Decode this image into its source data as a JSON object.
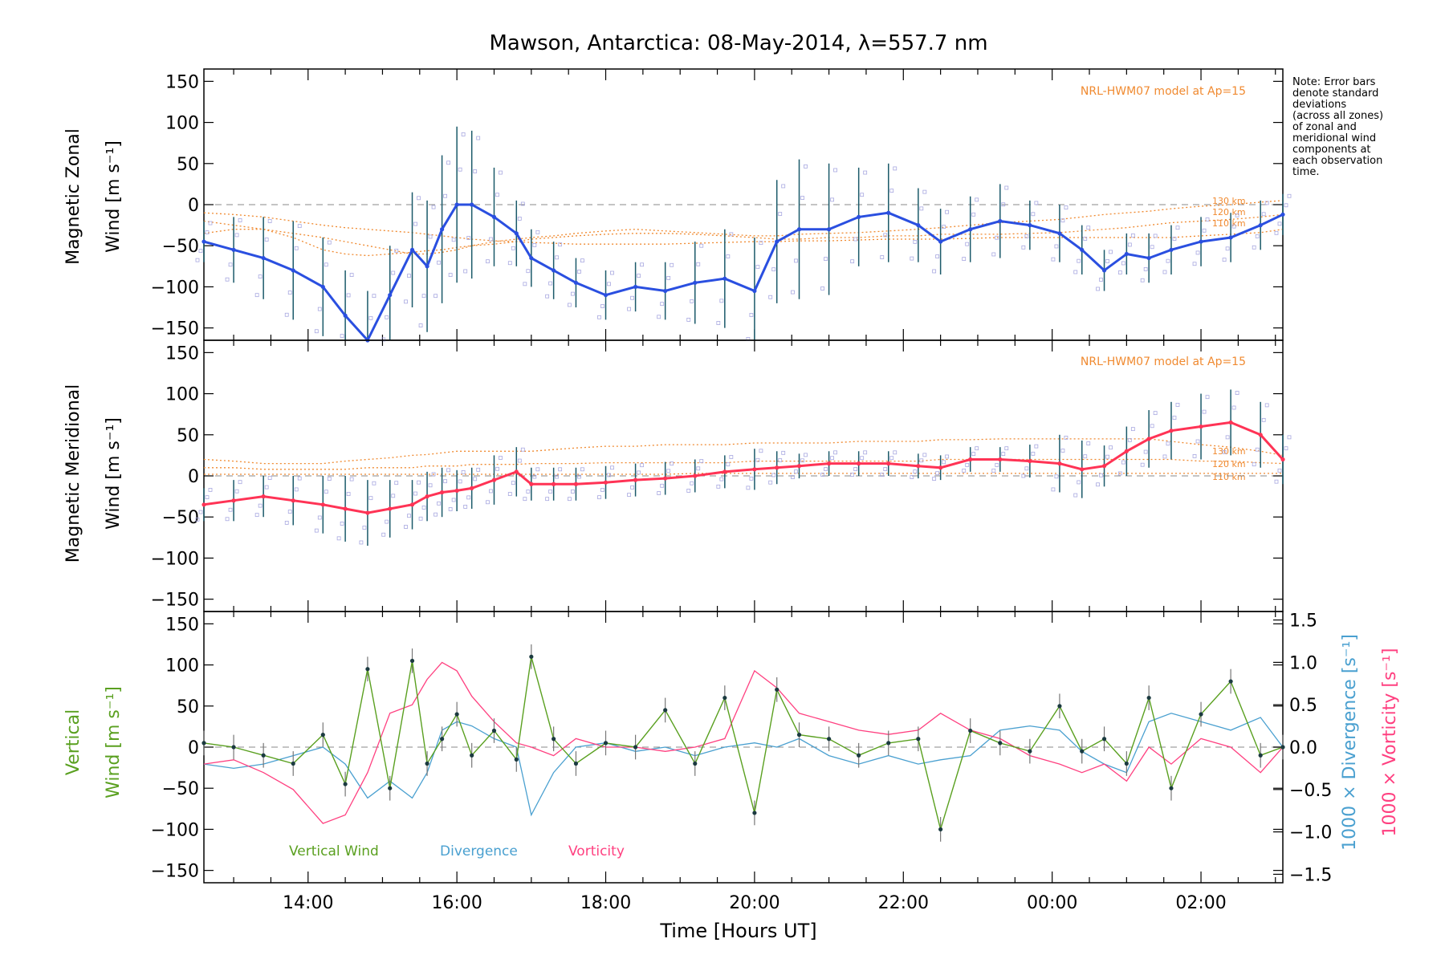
{
  "figure": {
    "title": "Mawson, Antarctica: 08-May-2014, λ=557.7 nm",
    "note": [
      "Note: Error bars",
      "denote standard",
      "deviations",
      "(across all zones)",
      "of zonal and",
      "meridional wind",
      "components at",
      "each observation",
      "time."
    ],
    "xlabel": "Time [Hours UT]",
    "colors": {
      "zonal": "#2a4fe0",
      "zonal_light": "#55a6e0",
      "meridional": "#ff3355",
      "vertical": "#5aa020",
      "divergence": "#4aa0d0",
      "vorticity": "#ff4080",
      "model": "#f08a30",
      "error_bar": "#1b5a6a",
      "scatter": "#a8a8e0"
    }
  },
  "chart_data": [
    {
      "type": "line",
      "panel": "zonal",
      "ylabel": [
        "Magnetic Zonal",
        "Wind [m s⁻¹]"
      ],
      "model_label": "NRL-HWM07 model at Ap=15",
      "model_levels": [
        "130 km",
        "120 km",
        "110 km"
      ],
      "xlim": [
        12.6,
        27.1
      ],
      "ylim": [
        -165,
        165
      ],
      "yticks": [
        -150,
        -100,
        -50,
        0,
        50,
        100,
        150
      ],
      "x_ticks": [
        "14:00",
        "16:00",
        "18:00",
        "20:00",
        "22:00",
        "00:00",
        "02:00"
      ],
      "x": [
        12.6,
        13.0,
        13.4,
        13.8,
        14.2,
        14.5,
        14.8,
        15.1,
        15.4,
        15.6,
        15.8,
        16.0,
        16.2,
        16.5,
        16.8,
        17.0,
        17.3,
        17.6,
        18.0,
        18.4,
        18.8,
        19.2,
        19.6,
        20.0,
        20.3,
        20.6,
        21.0,
        21.4,
        21.8,
        22.2,
        22.5,
        22.9,
        23.3,
        23.7,
        24.1,
        24.4,
        24.7,
        25.0,
        25.3,
        25.6,
        26.0,
        26.4,
        26.8,
        27.1
      ],
      "series": [
        {
          "values": [
            -45,
            -55,
            -65,
            -80,
            -100,
            -135,
            -165,
            -110,
            -55,
            -75,
            -30,
            0,
            0,
            -15,
            -35,
            -65,
            -80,
            -95,
            -110,
            -100,
            -105,
            -95,
            -90,
            -105,
            -45,
            -30,
            -30,
            -15,
            -10,
            -25,
            -45,
            -30,
            -20,
            -25,
            -35,
            -55,
            -80,
            -60,
            -65,
            -55,
            -45,
            -40,
            -25,
            -12
          ],
          "error": [
            25,
            40,
            50,
            60,
            60,
            55,
            60,
            60,
            70,
            80,
            90,
            95,
            90,
            60,
            40,
            35,
            35,
            30,
            30,
            30,
            35,
            50,
            60,
            65,
            75,
            85,
            80,
            60,
            60,
            45,
            40,
            40,
            45,
            30,
            35,
            30,
            25,
            25,
            30,
            30,
            30,
            30,
            30,
            25
          ]
        }
      ],
      "model": [
        {
          "level": "130 km",
          "values": [
            -35,
            -30,
            -30,
            -35,
            -40,
            -45,
            -50,
            -55,
            -60,
            -60,
            -58,
            -55,
            -50,
            -45,
            -42,
            -40,
            -38,
            -35,
            -32,
            -30,
            -32,
            -34,
            -36,
            -38,
            -38,
            -36,
            -35,
            -34,
            -32,
            -30,
            -28,
            -25,
            -22,
            -20,
            -18,
            -15,
            -12,
            -10,
            -8,
            -5,
            -2,
            0,
            3,
            5
          ]
        },
        {
          "level": "120 km",
          "values": [
            -20,
            -25,
            -30,
            -40,
            -55,
            -60,
            -62,
            -60,
            -58,
            -56,
            -55,
            -52,
            -50,
            -48,
            -45,
            -42,
            -40,
            -38,
            -36,
            -35,
            -35,
            -36,
            -38,
            -40,
            -42,
            -42,
            -40,
            -40,
            -38,
            -38,
            -36,
            -36,
            -36,
            -35,
            -34,
            -32,
            -30,
            -28,
            -25,
            -22,
            -20,
            -18,
            -15,
            -12
          ]
        },
        {
          "level": "110 km",
          "values": [
            -10,
            -12,
            -15,
            -20,
            -25,
            -28,
            -30,
            -32,
            -34,
            -36,
            -38,
            -40,
            -42,
            -44,
            -45,
            -46,
            -47,
            -48,
            -48,
            -48,
            -48,
            -47,
            -46,
            -45,
            -45,
            -44,
            -44,
            -43,
            -42,
            -42,
            -42,
            -41,
            -40,
            -40,
            -40,
            -40,
            -40,
            -40,
            -40,
            -40,
            -38,
            -36,
            -34,
            -30
          ]
        }
      ]
    },
    {
      "type": "line",
      "panel": "meridional",
      "ylabel": [
        "Magnetic Meridional",
        "Wind [m s⁻¹]"
      ],
      "model_label": "NRL-HWM07 model at Ap=15",
      "model_levels": [
        "130 km",
        "120 km",
        "110 km"
      ],
      "xlim": [
        12.6,
        27.1
      ],
      "ylim": [
        -165,
        165
      ],
      "yticks": [
        -150,
        -100,
        -50,
        0,
        50,
        100,
        150
      ],
      "x": [
        12.6,
        13.0,
        13.4,
        13.8,
        14.2,
        14.5,
        14.8,
        15.1,
        15.4,
        15.6,
        15.8,
        16.0,
        16.2,
        16.5,
        16.8,
        17.0,
        17.3,
        17.6,
        18.0,
        18.4,
        18.8,
        19.2,
        19.6,
        20.0,
        20.3,
        20.6,
        21.0,
        21.4,
        21.8,
        22.2,
        22.5,
        22.9,
        23.3,
        23.7,
        24.1,
        24.4,
        24.7,
        25.0,
        25.3,
        25.6,
        26.0,
        26.4,
        26.8,
        27.1
      ],
      "series": [
        {
          "values": [
            -35,
            -30,
            -25,
            -30,
            -35,
            -40,
            -45,
            -40,
            -35,
            -25,
            -20,
            -18,
            -15,
            -5,
            5,
            -10,
            -10,
            -10,
            -8,
            -5,
            -3,
            0,
            5,
            8,
            10,
            12,
            15,
            15,
            15,
            12,
            10,
            20,
            20,
            18,
            15,
            8,
            12,
            30,
            45,
            55,
            60,
            65,
            50,
            20
          ],
          "error": [
            20,
            25,
            25,
            30,
            35,
            40,
            40,
            35,
            30,
            30,
            30,
            25,
            25,
            30,
            30,
            20,
            20,
            20,
            20,
            20,
            20,
            20,
            20,
            25,
            20,
            15,
            15,
            15,
            15,
            15,
            15,
            15,
            15,
            20,
            35,
            35,
            25,
            30,
            35,
            35,
            40,
            40,
            40,
            30
          ]
        }
      ],
      "model": [
        {
          "level": "130 km",
          "values": [
            20,
            18,
            15,
            15,
            15,
            18,
            20,
            22,
            25,
            26,
            28,
            30,
            30,
            30,
            30,
            30,
            32,
            34,
            36,
            36,
            38,
            38,
            38,
            40,
            40,
            40,
            40,
            42,
            42,
            42,
            44,
            44,
            45,
            45,
            45,
            45,
            45,
            45,
            45,
            42,
            38,
            35,
            30,
            25
          ]
        },
        {
          "level": "120 km",
          "values": [
            10,
            10,
            8,
            8,
            8,
            8,
            10,
            10,
            10,
            12,
            12,
            12,
            14,
            14,
            14,
            15,
            15,
            15,
            16,
            16,
            16,
            16,
            16,
            18,
            18,
            18,
            18,
            18,
            18,
            18,
            20,
            20,
            20,
            20,
            20,
            20,
            20,
            20,
            20,
            20,
            18,
            18,
            16,
            15
          ]
        },
        {
          "level": "110 km",
          "values": [
            2,
            2,
            2,
            2,
            2,
            2,
            2,
            2,
            2,
            2,
            2,
            2,
            2,
            2,
            2,
            2,
            2,
            2,
            2,
            2,
            2,
            3,
            3,
            3,
            3,
            3,
            3,
            3,
            3,
            3,
            3,
            3,
            3,
            3,
            3,
            3,
            3,
            3,
            3,
            3,
            3,
            3,
            3,
            3
          ]
        }
      ]
    },
    {
      "type": "line",
      "panel": "vertical",
      "ylabel": [
        "Vertical",
        "Wind [m s⁻¹]"
      ],
      "ylabel_right": [
        "1000 × Divergence [s⁻¹]",
        "1000 × Vorticity [s⁻¹]"
      ],
      "xlim": [
        12.6,
        27.1
      ],
      "ylim": [
        -165,
        165
      ],
      "yticks": [
        -150,
        -100,
        -50,
        0,
        50,
        100,
        150
      ],
      "ylim_right": [
        -1.6,
        1.6
      ],
      "yticks_right": [
        "-1.5",
        "-1.0",
        "-0.5",
        "0.0",
        "0.5",
        "1.0",
        "1.5"
      ],
      "legend": [
        "Vertical Wind",
        "Divergence",
        "Vorticity"
      ],
      "x": [
        12.6,
        13.0,
        13.4,
        13.8,
        14.2,
        14.5,
        14.8,
        15.1,
        15.4,
        15.6,
        15.8,
        16.0,
        16.2,
        16.5,
        16.8,
        17.0,
        17.3,
        17.6,
        18.0,
        18.4,
        18.8,
        19.2,
        19.6,
        20.0,
        20.3,
        20.6,
        21.0,
        21.4,
        21.8,
        22.2,
        22.5,
        22.9,
        23.3,
        23.7,
        24.1,
        24.4,
        24.7,
        25.0,
        25.3,
        25.6,
        26.0,
        26.4,
        26.8,
        27.1
      ],
      "series": [
        {
          "name": "Vertical Wind",
          "values": [
            5,
            0,
            -10,
            -20,
            15,
            -45,
            95,
            -50,
            105,
            -20,
            10,
            40,
            -10,
            20,
            -15,
            110,
            10,
            -20,
            5,
            0,
            45,
            -20,
            60,
            -80,
            70,
            15,
            10,
            -10,
            5,
            10,
            -100,
            20,
            5,
            -5,
            50,
            -5,
            10,
            -20,
            60,
            -50,
            40,
            80,
            -10,
            0
          ],
          "error": [
            15,
            15,
            15,
            15,
            15,
            15,
            15,
            15,
            15,
            15,
            15,
            15,
            15,
            15,
            15,
            15,
            15,
            15,
            15,
            15,
            15,
            15,
            15,
            15,
            15,
            15,
            15,
            15,
            15,
            15,
            15,
            15,
            15,
            15,
            15,
            15,
            15,
            15,
            15,
            15,
            15,
            15,
            15,
            15
          ]
        },
        {
          "name": "Divergence",
          "values": [
            -0.2,
            -0.25,
            -0.2,
            -0.1,
            0.0,
            -0.2,
            -0.6,
            -0.4,
            -0.6,
            -0.3,
            0.2,
            0.3,
            0.25,
            0.1,
            0.0,
            -0.8,
            -0.3,
            0.0,
            0.05,
            -0.05,
            0.0,
            -0.1,
            0.0,
            0.05,
            0.0,
            0.1,
            -0.1,
            -0.2,
            -0.1,
            -0.2,
            -0.15,
            -0.1,
            0.2,
            0.25,
            0.2,
            -0.05,
            -0.2,
            -0.3,
            0.3,
            0.4,
            0.3,
            0.2,
            0.35,
            0.0
          ]
        },
        {
          "name": "Vorticity",
          "values": [
            -0.2,
            -0.15,
            -0.3,
            -0.5,
            -0.9,
            -0.8,
            -0.3,
            0.4,
            0.5,
            0.8,
            1.0,
            0.9,
            0.6,
            0.3,
            0.05,
            0.0,
            -0.1,
            0.1,
            0.0,
            0.0,
            -0.05,
            0.0,
            0.1,
            0.9,
            0.7,
            0.4,
            0.3,
            0.2,
            0.15,
            0.2,
            0.4,
            0.2,
            0.1,
            -0.1,
            -0.2,
            -0.3,
            -0.2,
            -0.4,
            0.0,
            -0.2,
            0.1,
            0.0,
            -0.3,
            0.0
          ]
        }
      ]
    }
  ]
}
